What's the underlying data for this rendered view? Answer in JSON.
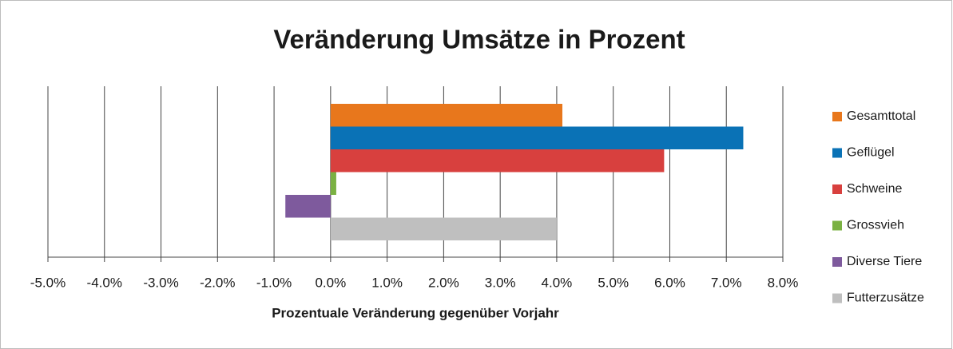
{
  "chart_data": {
    "type": "hbar",
    "title": "Veränderung Umsätze in Prozent",
    "x_label": "Prozentuale Veränderung gegenüber Vorjahr",
    "series": [
      {
        "name": "Gesamttotal",
        "color": "#e8771c",
        "values": [
          4.1
        ]
      },
      {
        "name": "Geflügel",
        "color": "#0a72b6",
        "values": [
          7.3
        ]
      },
      {
        "name": "Schweine",
        "color": "#d8403e",
        "values": [
          5.9
        ]
      },
      {
        "name": "Grossvieh",
        "color": "#7ab142",
        "values": [
          0.1
        ]
      },
      {
        "name": "Diverse Tiere",
        "color": "#7e5a9d",
        "values": [
          -0.8
        ]
      },
      {
        "name": "Futterzusätze",
        "color": "#bfbfbf",
        "values": [
          4.0
        ]
      }
    ],
    "xlim": [
      -5,
      8
    ],
    "xticks": [
      {
        "value": -5,
        "label": "-5.0%"
      },
      {
        "value": -4,
        "label": "-4.0%"
      },
      {
        "value": -3,
        "label": "-3.0%"
      },
      {
        "value": -2,
        "label": "-2.0%"
      },
      {
        "value": -1,
        "label": "-1.0%"
      },
      {
        "value": 0,
        "label": "0.0%"
      },
      {
        "value": 1,
        "label": "1.0%"
      },
      {
        "value": 2,
        "label": "2.0%"
      },
      {
        "value": 3,
        "label": "3.0%"
      },
      {
        "value": 4,
        "label": "4.0%"
      },
      {
        "value": 5,
        "label": "5.0%"
      },
      {
        "value": 6,
        "label": "6.0%"
      },
      {
        "value": 7,
        "label": "7.0%"
      },
      {
        "value": 8,
        "label": "8.0%"
      }
    ],
    "grid": true,
    "legend": "right"
  }
}
